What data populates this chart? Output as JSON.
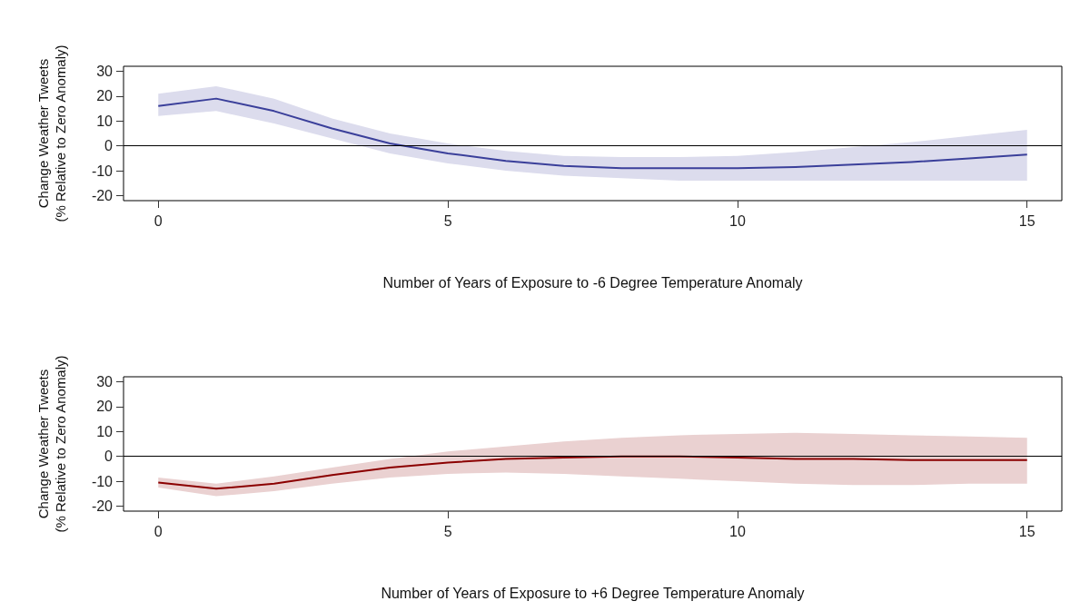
{
  "chart_data": [
    {
      "type": "line",
      "xlabel": "Number of Years of Exposure to -6 Degree Temperature Anomaly",
      "ylabel": "Change Weather Tweets\n(% Relative to Zero Anomaly)",
      "x": [
        0,
        1,
        2,
        3,
        4,
        5,
        6,
        7,
        8,
        9,
        10,
        11,
        12,
        13,
        14,
        15
      ],
      "xlim": [
        -0.6,
        15.6
      ],
      "xticks": [
        0,
        5,
        10,
        15
      ],
      "ylim": [
        -22,
        32
      ],
      "yticks": [
        -20,
        -10,
        0,
        10,
        20,
        30
      ],
      "grid": false,
      "marker": "none",
      "line_style": "solid",
      "series": [
        {
          "color": "#3a3f9a",
          "values": [
            16,
            19,
            14,
            7,
            1,
            -3,
            -6,
            -8,
            -9,
            -9,
            -9,
            -8.5,
            -7.5,
            -6.5,
            -5,
            -3.5
          ],
          "lower": [
            12,
            14,
            9,
            3,
            -3,
            -7,
            -10,
            -12,
            -13,
            -14,
            -14,
            -14,
            -14,
            -14,
            -14,
            -14
          ],
          "upper": [
            21,
            24,
            19,
            11,
            5,
            1,
            -2,
            -4,
            -4.5,
            -4.5,
            -4,
            -2.5,
            -0.5,
            1.5,
            4,
            6.5
          ]
        }
      ],
      "ref_lines": [
        {
          "axis": "y",
          "value": 0,
          "color": "#000000"
        }
      ]
    },
    {
      "type": "line",
      "xlabel": "Number of Years of Exposure to +6 Degree Temperature Anomaly",
      "ylabel": "Change Weather Tweets\n(% Relative to Zero Anomaly)",
      "x": [
        0,
        1,
        2,
        3,
        4,
        5,
        6,
        7,
        8,
        9,
        10,
        11,
        12,
        13,
        14,
        15
      ],
      "xlim": [
        -0.6,
        15.6
      ],
      "xticks": [
        0,
        5,
        10,
        15
      ],
      "ylim": [
        -22,
        32
      ],
      "yticks": [
        -20,
        -10,
        0,
        10,
        20,
        30
      ],
      "grid": false,
      "marker": "none",
      "line_style": "solid",
      "series": [
        {
          "color": "#8b0000",
          "values": [
            -10.5,
            -13,
            -11,
            -7.5,
            -4.5,
            -2.5,
            -1,
            -0.5,
            0,
            0,
            -0.5,
            -1,
            -1,
            -1.5,
            -1.5,
            -1.5
          ],
          "lower": [
            -12.5,
            -16,
            -14,
            -11,
            -8.5,
            -7,
            -6.5,
            -7,
            -8,
            -9,
            -10,
            -11,
            -11.5,
            -11.5,
            -11,
            -11
          ],
          "upper": [
            -8.5,
            -11,
            -8,
            -4.5,
            -1,
            2,
            4,
            6,
            7.5,
            8.5,
            9,
            9.5,
            9,
            8.5,
            8,
            7.5
          ]
        }
      ],
      "ref_lines": [
        {
          "axis": "y",
          "value": 0,
          "color": "#000000"
        }
      ]
    }
  ]
}
